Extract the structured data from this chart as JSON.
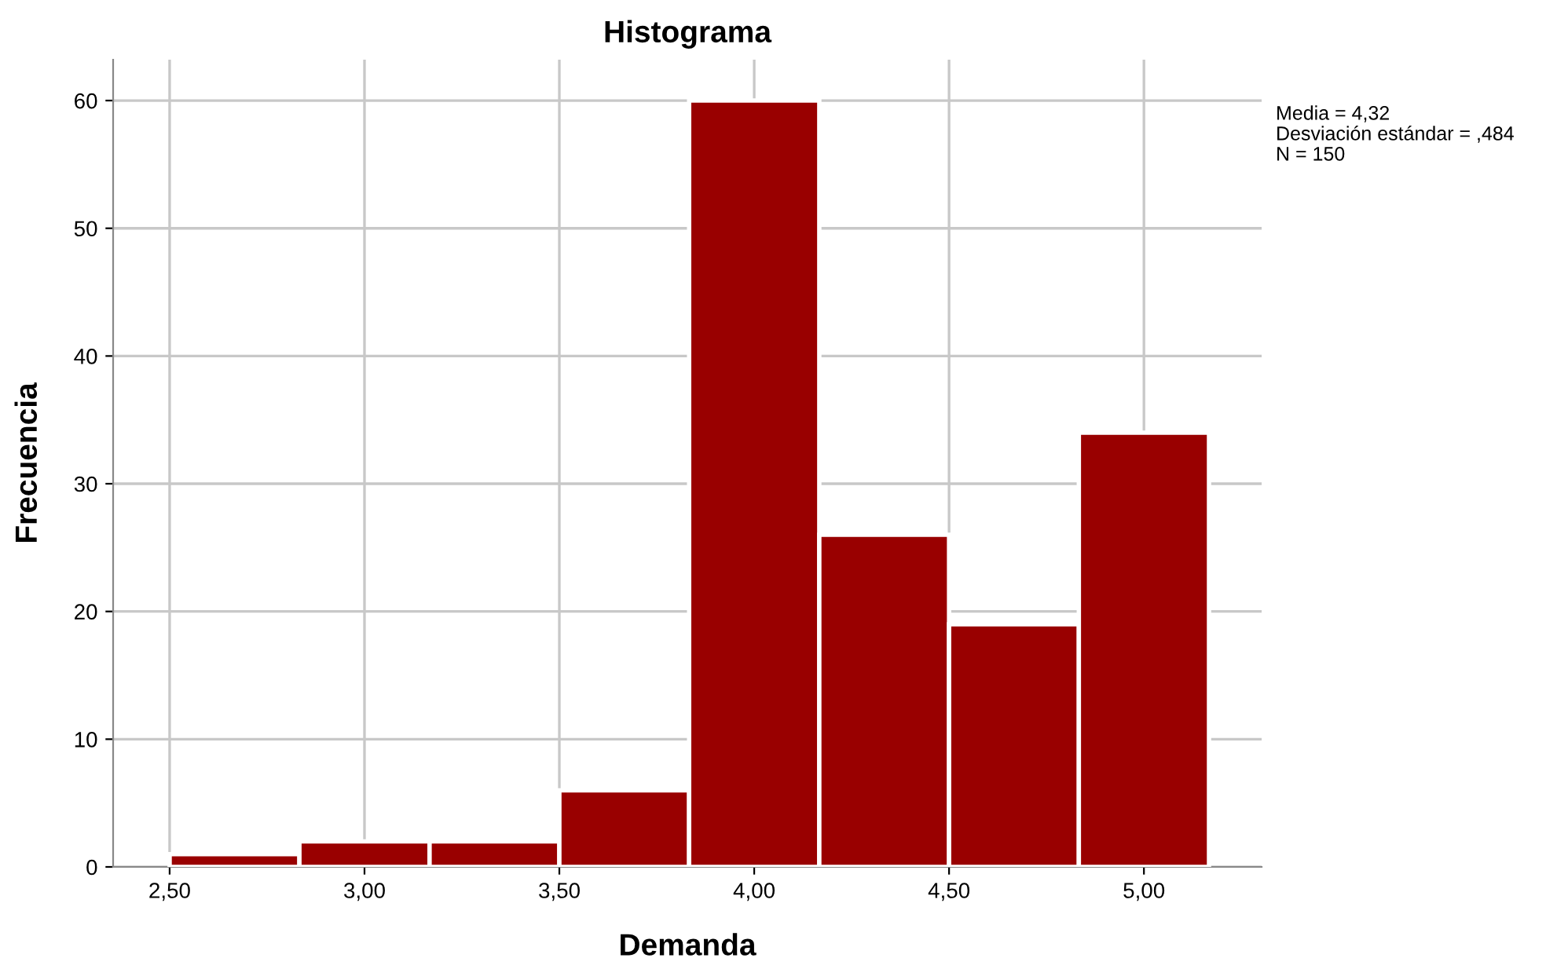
{
  "chart_data": {
    "type": "histogram",
    "title": "Histograma",
    "xlabel": "Demanda",
    "ylabel": "Frecuencia",
    "bins": [
      2.5,
      2.833,
      3.167,
      3.5,
      3.833,
      4.167,
      4.5,
      4.833,
      5.167
    ],
    "values": [
      1,
      2,
      2,
      6,
      60,
      26,
      19,
      34
    ],
    "color": "#990000",
    "xlim": [
      2.355,
      5.302
    ],
    "ylim": [
      0,
      63.2
    ],
    "xticks": [
      {
        "value": 2.5,
        "label": "2,50"
      },
      {
        "value": 3.0,
        "label": "3,00"
      },
      {
        "value": 3.5,
        "label": "3,50"
      },
      {
        "value": 4.0,
        "label": "4,00"
      },
      {
        "value": 4.5,
        "label": "4,50"
      },
      {
        "value": 5.0,
        "label": "5,00"
      }
    ],
    "yticks": [
      0,
      10,
      20,
      30,
      40,
      50,
      60
    ],
    "grid": true,
    "annotations": [
      "Media = 4,32",
      "Desviación estándar = ,484",
      "N = 150"
    ]
  }
}
